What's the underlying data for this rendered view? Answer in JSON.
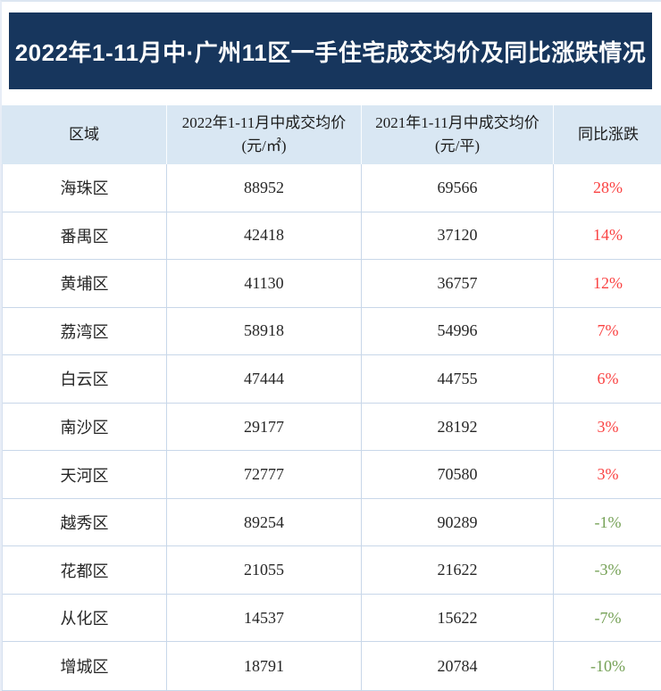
{
  "title": "2022年1-11月中·广州11区一手住宅成交均价及同比涨跌情况",
  "table": {
    "headers": {
      "region": "区域",
      "col2022_line1": "2022年1-11月中成交均价",
      "col2022_line2": "(元/㎡)",
      "col2021_line1": "2021年1-11月中成交均价",
      "col2021_line2": "(元/平)",
      "yoy": "同比涨跌"
    },
    "rows": [
      {
        "region": "海珠区",
        "price2022": "88952",
        "price2021": "69566",
        "yoy": "28%",
        "trend": "up"
      },
      {
        "region": "番禺区",
        "price2022": "42418",
        "price2021": "37120",
        "yoy": "14%",
        "trend": "up"
      },
      {
        "region": "黄埔区",
        "price2022": "41130",
        "price2021": "36757",
        "yoy": "12%",
        "trend": "up"
      },
      {
        "region": "荔湾区",
        "price2022": "58918",
        "price2021": "54996",
        "yoy": "7%",
        "trend": "up"
      },
      {
        "region": "白云区",
        "price2022": "47444",
        "price2021": "44755",
        "yoy": "6%",
        "trend": "up"
      },
      {
        "region": "南沙区",
        "price2022": "29177",
        "price2021": "28192",
        "yoy": "3%",
        "trend": "up"
      },
      {
        "region": "天河区",
        "price2022": "72777",
        "price2021": "70580",
        "yoy": "3%",
        "trend": "up"
      },
      {
        "region": "越秀区",
        "price2022": "89254",
        "price2021": "90289",
        "yoy": "-1%",
        "trend": "down"
      },
      {
        "region": "花都区",
        "price2022": "21055",
        "price2021": "21622",
        "yoy": "-3%",
        "trend": "down"
      },
      {
        "region": "从化区",
        "price2022": "14537",
        "price2021": "15622",
        "yoy": "-7%",
        "trend": "down"
      },
      {
        "region": "增城区",
        "price2022": "18791",
        "price2021": "20784",
        "yoy": "-10%",
        "trend": "down"
      }
    ]
  },
  "colors": {
    "title_bg": "#17365d",
    "title_text": "#ffffff",
    "header_bg": "#d9e7f3",
    "border": "#c8d7e9",
    "up_red": "#fa4343",
    "down_green": "#75a156",
    "body_text": "#262626"
  },
  "chart_data": {
    "type": "table",
    "title": "2022年1-11月中·广州11区一手住宅成交均价及同比涨跌情况",
    "columns": [
      "区域",
      "2022年1-11月中成交均价(元/㎡)",
      "2021年1-11月中成交均价(元/平)",
      "同比涨跌"
    ],
    "rows": [
      [
        "海珠区",
        88952,
        69566,
        "28%"
      ],
      [
        "番禺区",
        42418,
        37120,
        "14%"
      ],
      [
        "黄埔区",
        41130,
        36757,
        "12%"
      ],
      [
        "荔湾区",
        58918,
        54996,
        "7%"
      ],
      [
        "白云区",
        47444,
        44755,
        "6%"
      ],
      [
        "南沙区",
        29177,
        28192,
        "3%"
      ],
      [
        "天河区",
        72777,
        70580,
        "3%"
      ],
      [
        "越秀区",
        89254,
        90289,
        "-1%"
      ],
      [
        "花都区",
        21055,
        21622,
        "-3%"
      ],
      [
        "从化区",
        14537,
        15622,
        "-7%"
      ],
      [
        "增城区",
        18791,
        20784,
        "-10%"
      ]
    ],
    "notes": "positive yoy values shown in red, negative in green"
  }
}
